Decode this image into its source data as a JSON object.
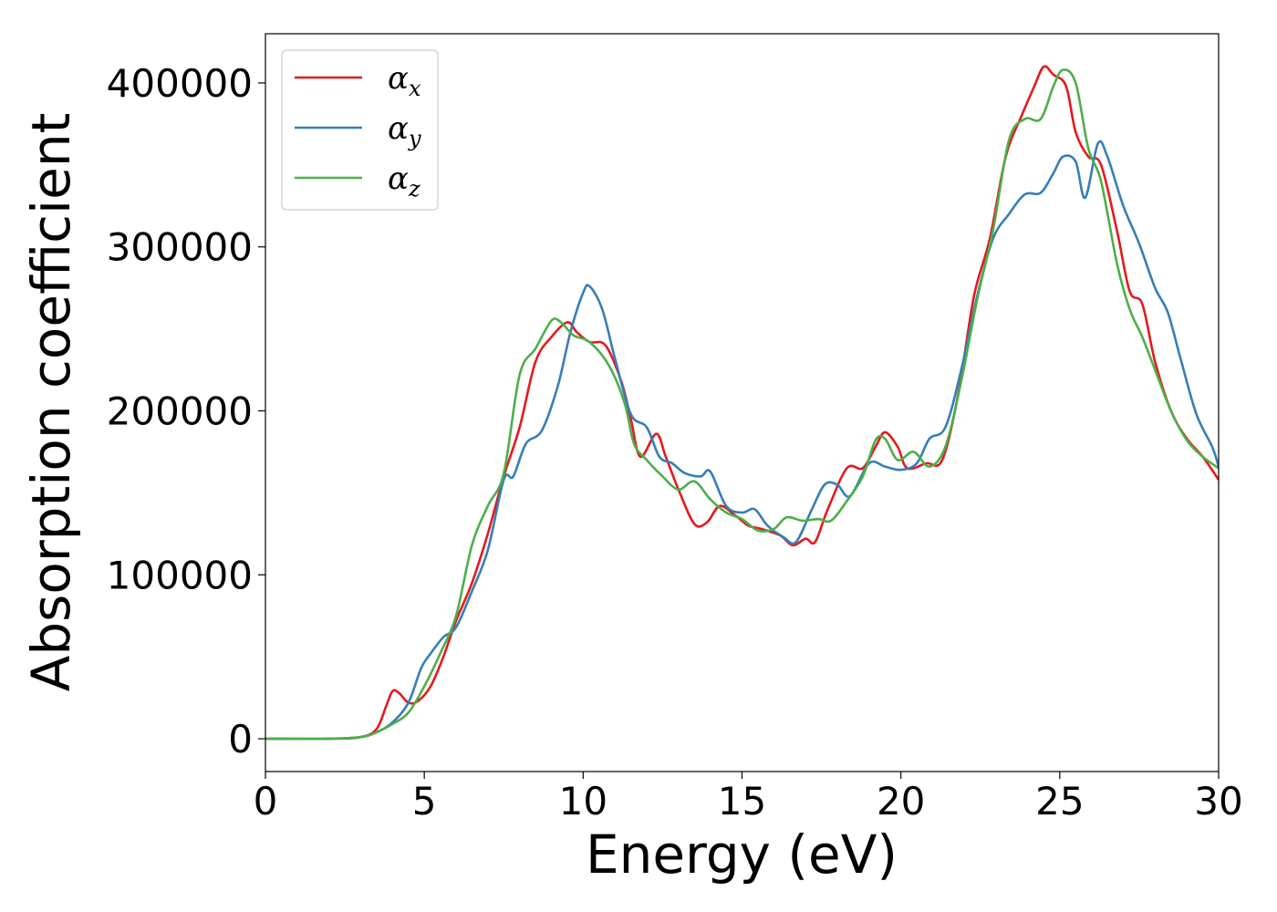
{
  "chart_data": {
    "type": "line",
    "title": "",
    "xlabel": "Energy (eV)",
    "ylabel": "Absorption coefficient",
    "xlim": [
      0,
      30
    ],
    "ylim": [
      -20000,
      430000
    ],
    "xticks": [
      0,
      5,
      10,
      15,
      20,
      25,
      30
    ],
    "xtick_labels": [
      "0",
      "5",
      "10",
      "15",
      "20",
      "25",
      "30"
    ],
    "yticks": [
      0,
      100000,
      200000,
      300000,
      400000
    ],
    "ytick_labels": [
      "0",
      "100000",
      "200000",
      "300000",
      "400000"
    ],
    "grid": false,
    "legend_position": "top-left",
    "series": [
      {
        "name": "αx",
        "legend_base": "α",
        "legend_sub": "x",
        "color": "#e41a1c",
        "points": [
          [
            0,
            0
          ],
          [
            2,
            0
          ],
          [
            3,
            1000
          ],
          [
            3.5,
            6000
          ],
          [
            3.8,
            20000
          ],
          [
            4.0,
            29000
          ],
          [
            4.2,
            28000
          ],
          [
            4.5,
            22000
          ],
          [
            4.8,
            23000
          ],
          [
            5.2,
            32000
          ],
          [
            5.6,
            50000
          ],
          [
            6.0,
            72000
          ],
          [
            6.5,
            95000
          ],
          [
            7.0,
            125000
          ],
          [
            7.5,
            160000
          ],
          [
            8.0,
            190000
          ],
          [
            8.5,
            230000
          ],
          [
            9.0,
            245000
          ],
          [
            9.5,
            254000
          ],
          [
            9.8,
            248000
          ],
          [
            10.2,
            242000
          ],
          [
            10.7,
            240000
          ],
          [
            11.2,
            218000
          ],
          [
            11.5,
            195000
          ],
          [
            11.8,
            172000
          ],
          [
            12.3,
            186000
          ],
          [
            12.6,
            172000
          ],
          [
            13.0,
            152000
          ],
          [
            13.5,
            131000
          ],
          [
            13.9,
            132000
          ],
          [
            14.3,
            142000
          ],
          [
            14.8,
            136000
          ],
          [
            15.2,
            130000
          ],
          [
            15.6,
            128000
          ],
          [
            16.2,
            124000
          ],
          [
            16.6,
            118000
          ],
          [
            17.0,
            122000
          ],
          [
            17.3,
            120000
          ],
          [
            17.7,
            140000
          ],
          [
            18.3,
            165000
          ],
          [
            18.8,
            165000
          ],
          [
            19.2,
            178000
          ],
          [
            19.5,
            187000
          ],
          [
            19.9,
            178000
          ],
          [
            20.2,
            165000
          ],
          [
            20.8,
            168000
          ],
          [
            21.3,
            170000
          ],
          [
            21.8,
            210000
          ],
          [
            22.3,
            270000
          ],
          [
            22.8,
            305000
          ],
          [
            23.3,
            355000
          ],
          [
            23.8,
            380000
          ],
          [
            24.2,
            398000
          ],
          [
            24.5,
            410000
          ],
          [
            24.8,
            405000
          ],
          [
            25.2,
            398000
          ],
          [
            25.5,
            370000
          ],
          [
            25.9,
            355000
          ],
          [
            26.3,
            350000
          ],
          [
            26.8,
            310000
          ],
          [
            27.2,
            273000
          ],
          [
            27.6,
            265000
          ],
          [
            28.0,
            230000
          ],
          [
            28.5,
            200000
          ],
          [
            29.0,
            183000
          ],
          [
            29.5,
            172000
          ],
          [
            30.0,
            158000
          ]
        ]
      },
      {
        "name": "αy",
        "legend_base": "α",
        "legend_sub": "y",
        "color": "#377eb8",
        "points": [
          [
            0,
            0
          ],
          [
            2,
            0
          ],
          [
            3,
            1000
          ],
          [
            3.5,
            4000
          ],
          [
            4.0,
            10000
          ],
          [
            4.5,
            22000
          ],
          [
            4.9,
            43000
          ],
          [
            5.2,
            52000
          ],
          [
            5.6,
            62000
          ],
          [
            6.0,
            68000
          ],
          [
            6.5,
            90000
          ],
          [
            7.0,
            115000
          ],
          [
            7.5,
            158000
          ],
          [
            7.8,
            160000
          ],
          [
            8.2,
            180000
          ],
          [
            8.7,
            188000
          ],
          [
            9.2,
            215000
          ],
          [
            9.6,
            248000
          ],
          [
            10.0,
            272000
          ],
          [
            10.2,
            276000
          ],
          [
            10.6,
            262000
          ],
          [
            11.0,
            232000
          ],
          [
            11.5,
            198000
          ],
          [
            12.0,
            190000
          ],
          [
            12.4,
            172000
          ],
          [
            12.8,
            168000
          ],
          [
            13.2,
            162000
          ],
          [
            13.7,
            160000
          ],
          [
            14.0,
            163000
          ],
          [
            14.5,
            142000
          ],
          [
            15.0,
            138000
          ],
          [
            15.4,
            140000
          ],
          [
            15.8,
            130000
          ],
          [
            16.3,
            123000
          ],
          [
            16.7,
            120000
          ],
          [
            17.2,
            140000
          ],
          [
            17.6,
            155000
          ],
          [
            18.0,
            155000
          ],
          [
            18.4,
            148000
          ],
          [
            19.0,
            168000
          ],
          [
            19.5,
            166000
          ],
          [
            20.0,
            164000
          ],
          [
            20.5,
            168000
          ],
          [
            20.9,
            183000
          ],
          [
            21.4,
            190000
          ],
          [
            21.9,
            225000
          ],
          [
            22.4,
            270000
          ],
          [
            22.9,
            305000
          ],
          [
            23.4,
            320000
          ],
          [
            23.9,
            332000
          ],
          [
            24.4,
            333000
          ],
          [
            24.8,
            345000
          ],
          [
            25.1,
            355000
          ],
          [
            25.5,
            352000
          ],
          [
            25.8,
            330000
          ],
          [
            26.2,
            363000
          ],
          [
            26.5,
            355000
          ],
          [
            27.0,
            325000
          ],
          [
            27.5,
            302000
          ],
          [
            28.0,
            275000
          ],
          [
            28.4,
            260000
          ],
          [
            28.8,
            232000
          ],
          [
            29.3,
            198000
          ],
          [
            29.8,
            178000
          ],
          [
            30.0,
            166000
          ]
        ]
      },
      {
        "name": "αz",
        "legend_base": "α",
        "legend_sub": "z",
        "color": "#4daf4a",
        "points": [
          [
            0,
            0
          ],
          [
            2,
            0
          ],
          [
            3,
            1000
          ],
          [
            3.5,
            4000
          ],
          [
            4.0,
            9000
          ],
          [
            4.5,
            16000
          ],
          [
            5.0,
            32000
          ],
          [
            5.5,
            52000
          ],
          [
            6.0,
            75000
          ],
          [
            6.5,
            118000
          ],
          [
            7.0,
            142000
          ],
          [
            7.5,
            162000
          ],
          [
            8.0,
            222000
          ],
          [
            8.5,
            238000
          ],
          [
            9.0,
            255000
          ],
          [
            9.3,
            254000
          ],
          [
            9.7,
            246000
          ],
          [
            10.2,
            242000
          ],
          [
            10.8,
            228000
          ],
          [
            11.3,
            205000
          ],
          [
            11.6,
            180000
          ],
          [
            12.0,
            170000
          ],
          [
            12.5,
            160000
          ],
          [
            13.0,
            152000
          ],
          [
            13.5,
            157000
          ],
          [
            14.0,
            146000
          ],
          [
            14.5,
            138000
          ],
          [
            15.0,
            134000
          ],
          [
            15.5,
            127000
          ],
          [
            16.0,
            128000
          ],
          [
            16.4,
            135000
          ],
          [
            16.9,
            133000
          ],
          [
            17.4,
            134000
          ],
          [
            17.8,
            133000
          ],
          [
            18.3,
            145000
          ],
          [
            18.8,
            160000
          ],
          [
            19.2,
            182000
          ],
          [
            19.5,
            183000
          ],
          [
            19.9,
            170000
          ],
          [
            20.4,
            175000
          ],
          [
            20.9,
            166000
          ],
          [
            21.4,
            178000
          ],
          [
            21.9,
            218000
          ],
          [
            22.4,
            268000
          ],
          [
            22.9,
            310000
          ],
          [
            23.4,
            365000
          ],
          [
            23.9,
            378000
          ],
          [
            24.4,
            378000
          ],
          [
            24.8,
            398000
          ],
          [
            25.1,
            408000
          ],
          [
            25.5,
            400000
          ],
          [
            25.9,
            360000
          ],
          [
            26.3,
            340000
          ],
          [
            26.8,
            290000
          ],
          [
            27.2,
            262000
          ],
          [
            27.6,
            245000
          ],
          [
            28.0,
            225000
          ],
          [
            28.5,
            200000
          ],
          [
            29.0,
            182000
          ],
          [
            29.5,
            172000
          ],
          [
            30.0,
            165000
          ]
        ]
      }
    ]
  }
}
